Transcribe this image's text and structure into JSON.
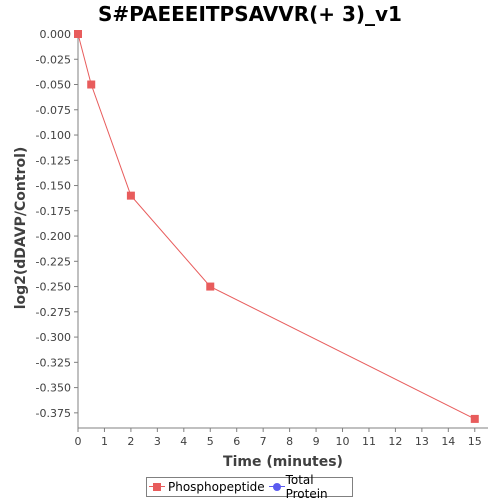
{
  "chart_data": {
    "type": "line",
    "title": "S#PAEEEITPSAVVR(+ 3)_v1",
    "xlabel": "Time (minutes)",
    "ylabel": "log2(dDAVP/Control)",
    "xlim": [
      0,
      15.5
    ],
    "ylim": [
      -0.39,
      0.0
    ],
    "x_ticks": [
      0,
      1,
      2,
      3,
      4,
      5,
      6,
      7,
      8,
      9,
      10,
      11,
      12,
      13,
      14,
      15
    ],
    "y_ticks": [
      0.0,
      -0.025,
      -0.05,
      -0.075,
      -0.1,
      -0.125,
      -0.15,
      -0.175,
      -0.2,
      -0.225,
      -0.25,
      -0.275,
      -0.3,
      -0.325,
      -0.35,
      -0.375
    ],
    "y_tick_labels": [
      "0.000",
      "-0.025",
      "-0.050",
      "-0.075",
      "-0.100",
      "-0.125",
      "-0.150",
      "-0.175",
      "-0.200",
      "-0.225",
      "-0.250",
      "-0.275",
      "-0.300",
      "-0.325",
      "-0.350",
      "-0.375"
    ],
    "grid": false,
    "legend_position": "bottom",
    "series": [
      {
        "name": "Phosphopeptide",
        "color": "#e85c5c",
        "marker": "square",
        "x": [
          0,
          0.5,
          2,
          5,
          15
        ],
        "y": [
          0.0,
          -0.05,
          -0.16,
          -0.25,
          -0.381
        ]
      },
      {
        "name": "Total Protein",
        "color": "#5b5bf0",
        "marker": "circle",
        "x": [],
        "y": []
      }
    ]
  }
}
